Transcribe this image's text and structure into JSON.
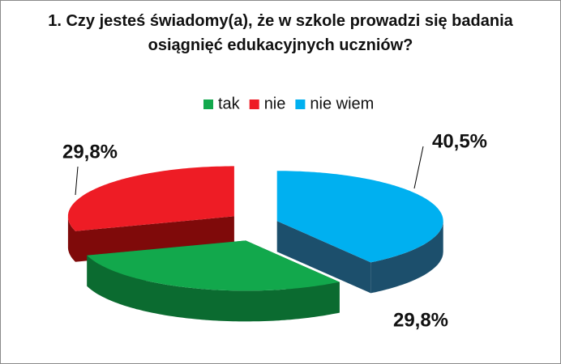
{
  "chart_data": {
    "type": "pie3d",
    "title": "1. Czy jesteś świadomy(a), że w szkole prowadzi się badania osiągnięć edukacyjnych uczniów?",
    "categories": [
      "tak",
      "nie",
      "nie wiem"
    ],
    "values": [
      29.8,
      29.8,
      40.5
    ],
    "value_labels": [
      "29,8%",
      "29,8%",
      "40,5%"
    ],
    "colors": [
      "#12a84c",
      "#ee1c25",
      "#00b0f0"
    ],
    "side_colors": [
      "#0b6b30",
      "#7f0a0a",
      "#1c4f6c"
    ],
    "legend": "top"
  }
}
